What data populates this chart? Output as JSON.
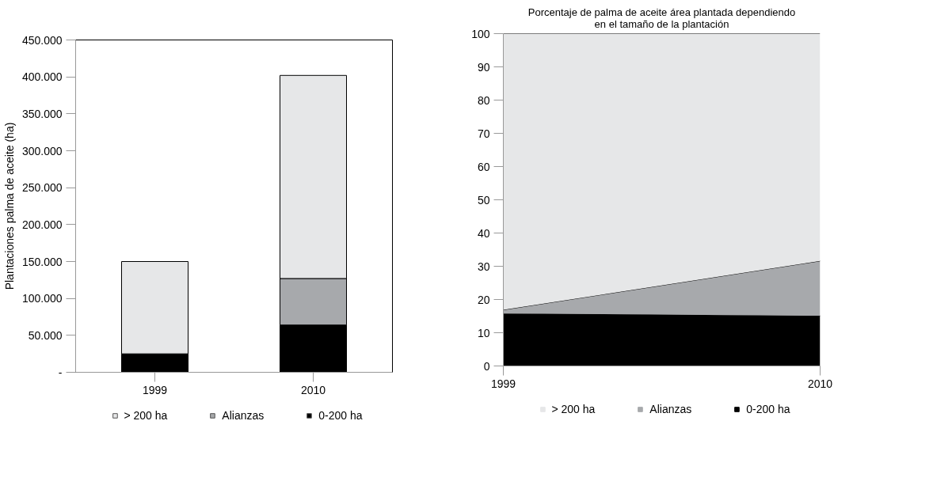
{
  "chart_data": [
    {
      "type": "bar",
      "stacked": true,
      "ylabel": "Plantaciones palma de aceite (ha)",
      "categories": [
        "1999",
        "2010"
      ],
      "series": [
        {
          "name": "0-200 ha",
          "color": "#000000",
          "values": [
            25000,
            64000
          ]
        },
        {
          "name": "Alianzas",
          "color": "#a7a9ac",
          "values": [
            0,
            63000
          ]
        },
        {
          "name": "> 200 ha",
          "color": "#e6e7e8",
          "values": [
            125000,
            275000
          ]
        }
      ],
      "ylim": [
        0,
        450000
      ],
      "yticks": [
        {
          "value": 0,
          "label": "-"
        },
        {
          "value": 50000,
          "label": "50.000"
        },
        {
          "value": 100000,
          "label": "100.000"
        },
        {
          "value": 150000,
          "label": "150.000"
        },
        {
          "value": 200000,
          "label": "200.000"
        },
        {
          "value": 250000,
          "label": "250.000"
        },
        {
          "value": 300000,
          "label": "300.000"
        },
        {
          "value": 350000,
          "label": "350.000"
        },
        {
          "value": 400000,
          "label": "400.000"
        },
        {
          "value": 450000,
          "label": "450.000"
        }
      ],
      "grid": false,
      "legend": "bottom"
    },
    {
      "type": "area",
      "stacked": true,
      "title": "Porcentaje de palma de aceite área plantada dependiendo\nen el tamaño de la plantación",
      "x": [
        1999,
        2010
      ],
      "series": [
        {
          "name": "0-200 ha",
          "color": "#000000",
          "values": [
            15.8,
            15.1
          ]
        },
        {
          "name": "Alianzas",
          "color": "#a7a9ac",
          "values": [
            1.1,
            16.5
          ]
        },
        {
          "name": "> 200 ha",
          "color": "#e6e7e8",
          "values": [
            83.1,
            68.4
          ]
        }
      ],
      "xlim": [
        1999,
        2010
      ],
      "xticks": [
        1999,
        2010
      ],
      "ylim": [
        0,
        100
      ],
      "yticks": [
        0,
        10,
        20,
        30,
        40,
        50,
        60,
        70,
        80,
        90,
        100
      ],
      "grid": false,
      "legend": "bottom"
    }
  ]
}
